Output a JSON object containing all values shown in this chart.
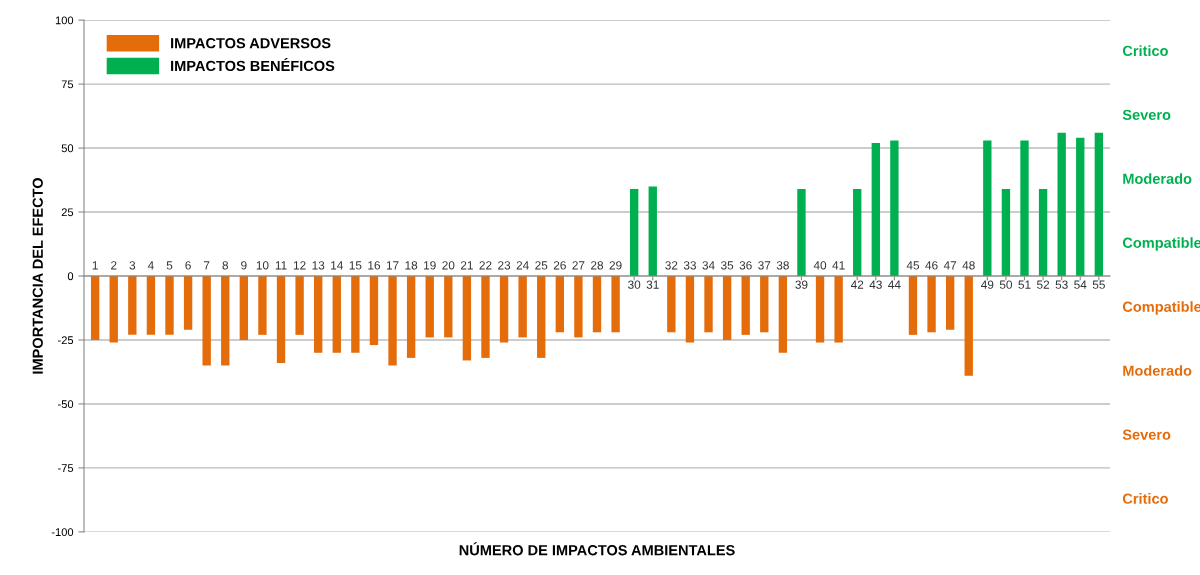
{
  "chart_data": {
    "type": "bar",
    "xlabel": "NÚMERO DE IMPACTOS AMBIENTALES",
    "ylabel": "IMPORTANCIA DEL EFECTO",
    "categories": [
      "1",
      "2",
      "3",
      "4",
      "5",
      "6",
      "7",
      "8",
      "9",
      "10",
      "11",
      "12",
      "13",
      "14",
      "15",
      "16",
      "17",
      "18",
      "19",
      "20",
      "21",
      "22",
      "23",
      "24",
      "25",
      "26",
      "27",
      "28",
      "29",
      "30",
      "31",
      "32",
      "33",
      "34",
      "35",
      "36",
      "37",
      "38",
      "39",
      "40",
      "41",
      "42",
      "43",
      "44",
      "45",
      "46",
      "47",
      "48",
      "49",
      "50",
      "51",
      "52",
      "53",
      "54",
      "55"
    ],
    "series": [
      {
        "name": "IMPACTOS ADVERSOS",
        "color": "#e46c0a",
        "values": [
          -25,
          -26,
          -23,
          -23,
          -23,
          -21,
          -35,
          -35,
          -25,
          -23,
          -34,
          -23,
          -30,
          -30,
          -30,
          -27,
          -35,
          -32,
          -24,
          -24,
          -33,
          -32,
          -26,
          -24,
          -32,
          -22,
          -24,
          -22,
          -22,
          null,
          null,
          -22,
          -26,
          -22,
          -25,
          -23,
          -22,
          -30,
          null,
          -26,
          -26,
          null,
          null,
          null,
          -23,
          -22,
          -21,
          -39,
          null,
          null,
          null,
          null,
          null,
          null,
          null
        ]
      },
      {
        "name": "IMPACTOS BENÉFICOS",
        "color": "#00b050",
        "values": [
          null,
          null,
          null,
          null,
          null,
          null,
          null,
          null,
          null,
          null,
          null,
          null,
          null,
          null,
          null,
          null,
          null,
          null,
          null,
          null,
          null,
          null,
          null,
          null,
          null,
          null,
          null,
          null,
          null,
          34,
          35,
          null,
          null,
          null,
          null,
          null,
          null,
          null,
          34,
          null,
          null,
          34,
          52,
          53,
          null,
          null,
          null,
          null,
          53,
          34,
          53,
          34,
          56,
          54,
          56
        ]
      }
    ],
    "ylim": [
      -100,
      100
    ],
    "yticks": [
      -100,
      -75,
      -50,
      -25,
      0,
      25,
      50,
      75,
      100
    ],
    "grid": "y",
    "legend": "top left",
    "annotations": [
      "Critico",
      "Severo",
      "Moderado",
      "Compatible",
      "Compatible",
      "Moderado",
      "Severo",
      "Critico"
    ]
  }
}
